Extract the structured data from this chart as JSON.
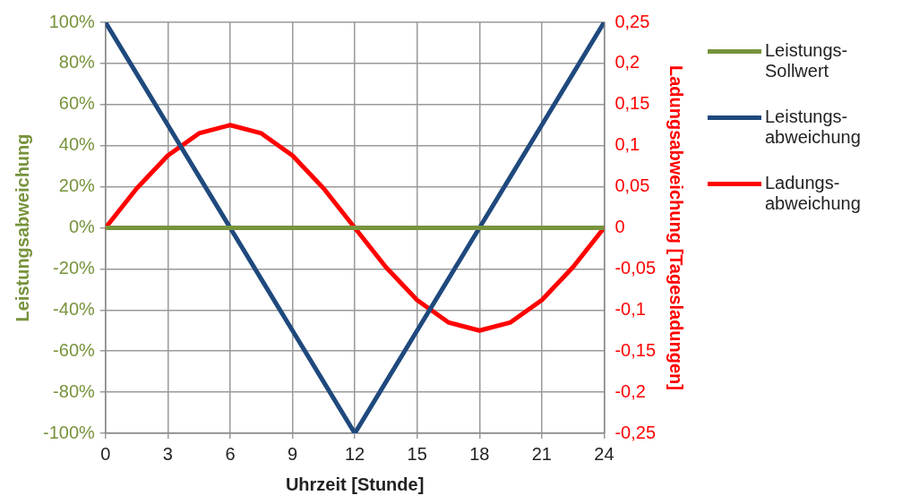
{
  "chart_data": {
    "type": "line",
    "xlabel": "Uhrzeit [Stunde]",
    "ylabel": "Leistungsabweichung",
    "y2label": "Ladungsabweichung [Tagesladungen]",
    "x": [
      0,
      1.5,
      3,
      4.5,
      6,
      7.5,
      9,
      10.5,
      12,
      13.5,
      15,
      16.5,
      18,
      19.5,
      21,
      22.5,
      24
    ],
    "series": [
      {
        "name": "Leistungs-Sollwert",
        "color": "#77933c",
        "values": [
          0,
          0,
          0,
          0,
          0,
          0,
          0,
          0,
          0,
          0,
          0,
          0,
          0,
          0,
          0,
          0,
          0
        ]
      },
      {
        "name": "Leistungs-abweichung",
        "color": "#1f497d",
        "values": [
          100,
          75,
          50,
          25,
          0,
          -25,
          -50,
          -75,
          -100,
          -75,
          -50,
          -25,
          0,
          25,
          50,
          75,
          100
        ]
      },
      {
        "name": "Ladungs-abweichung",
        "color": "#ff0000",
        "axis": "y2",
        "values": [
          0,
          0.048,
          0.088,
          0.115,
          0.125,
          0.115,
          0.088,
          0.048,
          0,
          -0.048,
          -0.088,
          -0.115,
          -0.125,
          -0.115,
          -0.088,
          -0.048,
          0
        ]
      }
    ],
    "xlim": [
      0,
      24
    ],
    "xticks": [
      0,
      3,
      6,
      9,
      12,
      15,
      18,
      21,
      24
    ],
    "ylim": [
      -100,
      100
    ],
    "yticks": [
      {
        "value": -100,
        "label": "-100%"
      },
      {
        "value": -80,
        "label": "-80%"
      },
      {
        "value": -60,
        "label": "-60%"
      },
      {
        "value": -40,
        "label": "-40%"
      },
      {
        "value": -20,
        "label": "-20%"
      },
      {
        "value": 0,
        "label": "0%"
      },
      {
        "value": 20,
        "label": "20%"
      },
      {
        "value": 40,
        "label": "40%"
      },
      {
        "value": 60,
        "label": "60%"
      },
      {
        "value": 80,
        "label": "80%"
      },
      {
        "value": 100,
        "label": "100%"
      }
    ],
    "y2lim": [
      -0.25,
      0.25
    ],
    "y2ticks": [
      {
        "value": -0.25,
        "label": "-0,25"
      },
      {
        "value": -0.2,
        "label": "-0,2"
      },
      {
        "value": -0.15,
        "label": "-0,15"
      },
      {
        "value": -0.1,
        "label": "-0,1"
      },
      {
        "value": -0.05,
        "label": "-0,05"
      },
      {
        "value": 0,
        "label": "0"
      },
      {
        "value": 0.05,
        "label": "0,05"
      },
      {
        "value": 0.1,
        "label": "0,1"
      },
      {
        "value": 0.15,
        "label": "0,15"
      },
      {
        "value": 0.2,
        "label": "0,2"
      },
      {
        "value": 0.25,
        "label": "0,25"
      }
    ],
    "grid": true,
    "legend": "right",
    "marker": "none",
    "line_style": "solid"
  }
}
